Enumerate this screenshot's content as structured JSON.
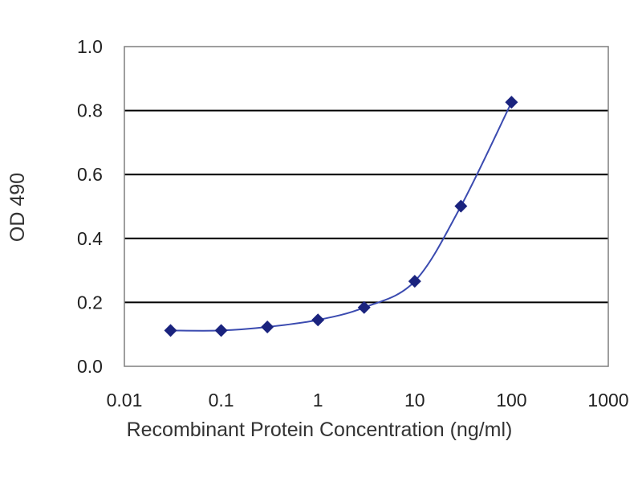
{
  "chart_data": {
    "type": "scatter",
    "xlabel": "Recombinant Protein Concentration (ng/ml)",
    "ylabel": "OD 490",
    "x_scale": "log",
    "xlim": [
      0.01,
      1000
    ],
    "ylim": [
      0.0,
      1.0
    ],
    "x_ticks": [
      "0.01",
      "0.1",
      "1",
      "10",
      "100",
      "1000"
    ],
    "y_ticks": [
      "0.0",
      "0.2",
      "0.4",
      "0.6",
      "0.8",
      "1.0"
    ],
    "grid": "horizontal",
    "series": [
      {
        "x": [
          0.03,
          0.1,
          0.3,
          1,
          3,
          10,
          30,
          100
        ],
        "y": [
          0.112,
          0.112,
          0.123,
          0.145,
          0.184,
          0.266,
          0.501,
          0.826
        ]
      }
    ],
    "colors": {
      "series": "#1a237e",
      "line": "#3b4bb0",
      "grid": "#000000",
      "frame": "#7f7f7f"
    }
  }
}
